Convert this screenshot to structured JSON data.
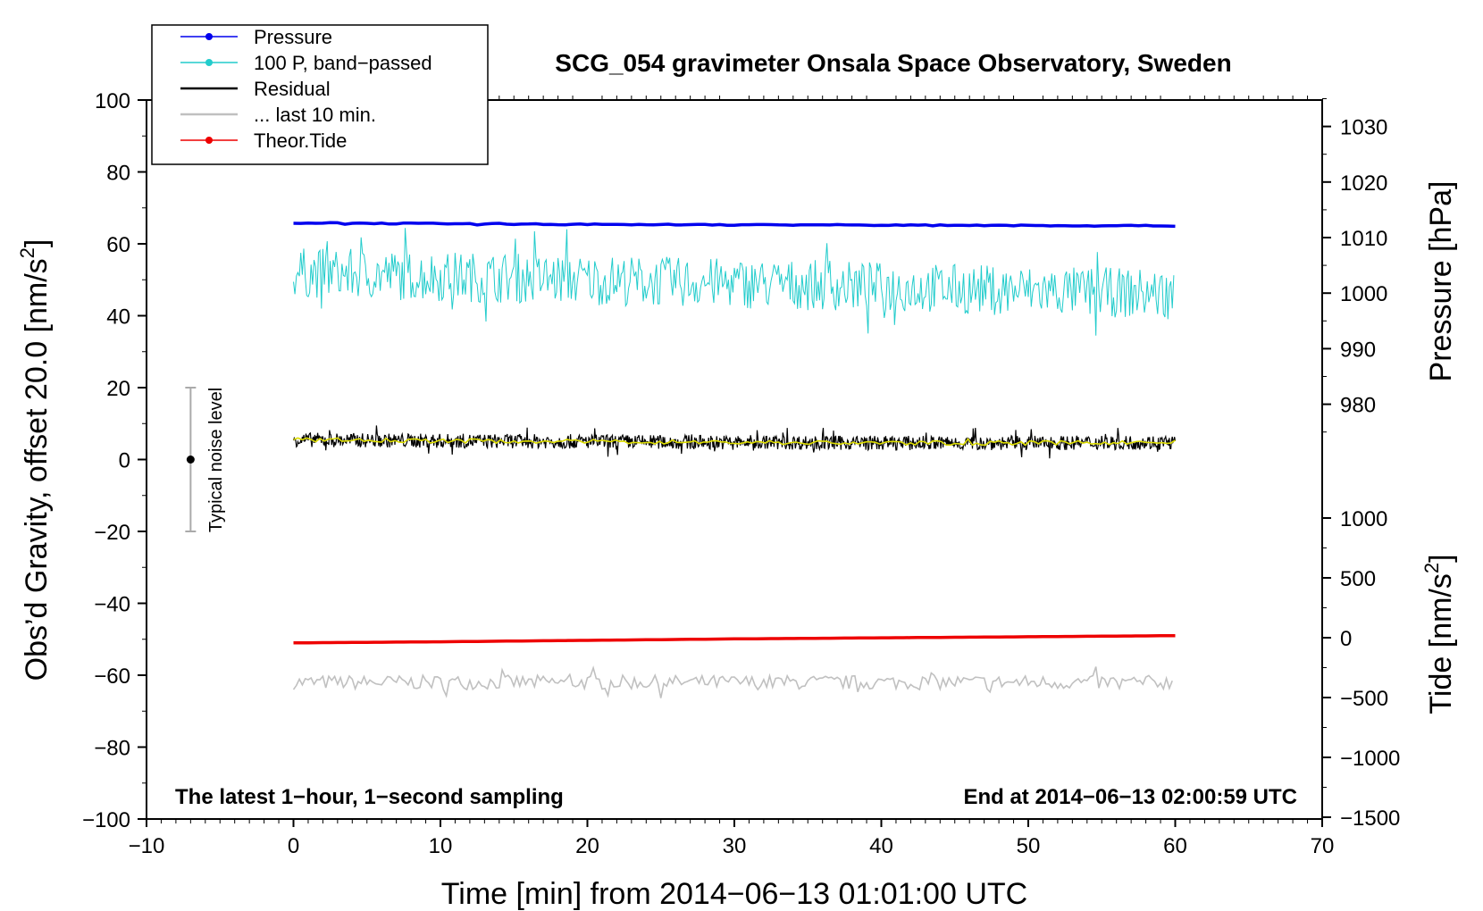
{
  "chart_data": {
    "type": "line",
    "title": "SCG_054 gravimeter Onsala Space Observatory, Sweden",
    "xlabel": "Time [min] from 2014−06−13 01:01:00 UTC",
    "ylabel": "Obs’d Gravity, offset 20.0 [nm/s",
    "ylabel_sup": "2",
    "ylabel_end": "]",
    "xlim": [
      -10,
      70
    ],
    "ylim": [
      -100,
      100
    ],
    "x_ticks": [
      -10,
      0,
      10,
      20,
      30,
      40,
      50,
      60,
      70
    ],
    "x_tick_labels": [
      "−10",
      "0",
      "10",
      "20",
      "30",
      "40",
      "50",
      "60",
      "70"
    ],
    "y_ticks": [
      -100,
      -80,
      -60,
      -40,
      -20,
      0,
      20,
      40,
      60,
      80,
      100
    ],
    "y_tick_labels": [
      "−100",
      "−80",
      "−60",
      "−40",
      "−20",
      "0",
      "20",
      "40",
      "60",
      "80",
      "100"
    ],
    "pressure_axis": {
      "label": "Pressure [hPa]",
      "ticks": [
        980,
        990,
        1000,
        1010,
        1020,
        1030
      ],
      "tick_labels": [
        "980",
        "990",
        "1000",
        "1010",
        "1020",
        "1030"
      ]
    },
    "tide_axis": {
      "label": "Tide [nm/s",
      "label_sup": "2",
      "label_end": "]",
      "ticks": [
        -1500,
        -1000,
        -500,
        0,
        500,
        1000
      ],
      "tick_labels": [
        "−1500",
        "−1000",
        "−500",
        "0",
        "500",
        "1000"
      ]
    },
    "series": [
      {
        "name": "Pressure",
        "color": "#0000ee",
        "x": [
          0,
          10,
          20,
          30,
          40,
          50,
          60
        ],
        "values": [
          65.8,
          65.6,
          65.4,
          65.3,
          65.2,
          65.1,
          65.0
        ]
      },
      {
        "name": "100 P, band−passed",
        "color": "#22cccc",
        "x": [
          0,
          10,
          20,
          30,
          40,
          50,
          60
        ],
        "values": [
          52,
          51,
          50,
          49,
          48,
          47,
          46
        ],
        "noise_amplitude": 7
      },
      {
        "name": "Residual",
        "color": "#000000",
        "x": [
          0,
          10,
          20,
          30,
          40,
          50,
          60
        ],
        "values": [
          5.5,
          5.2,
          5.0,
          4.8,
          4.6,
          4.6,
          4.8
        ],
        "noise_amplitude": 2
      },
      {
        "name": "... last 10 min.",
        "color": "#c0c0c0",
        "x": [
          0,
          10,
          20,
          30,
          40,
          50,
          60
        ],
        "values": [
          -62,
          -62,
          -62,
          -62,
          -62,
          -62,
          -62
        ],
        "noise_amplitude": 2
      },
      {
        "name": "Theor.Tide",
        "color": "#ee0000",
        "x": [
          0,
          10,
          20,
          30,
          40,
          50,
          60
        ],
        "values": [
          -51,
          -50.7,
          -50.3,
          -49.9,
          -49.6,
          -49.3,
          -49
        ]
      }
    ],
    "smoothed_residual_color": "#dddd00",
    "noise_bar": {
      "label": "Typical noise level",
      "x": -7,
      "center": 0,
      "low": -20,
      "high": 20
    },
    "annotation_left": "The latest 1−hour, 1−second sampling",
    "annotation_right": "End at 2014−06−13 02:00:59 UTC",
    "legend": [
      "Pressure",
      "100 P, band−passed",
      "Residual",
      "... last 10 min.",
      "Theor.Tide"
    ],
    "legend_position": "top-left"
  }
}
